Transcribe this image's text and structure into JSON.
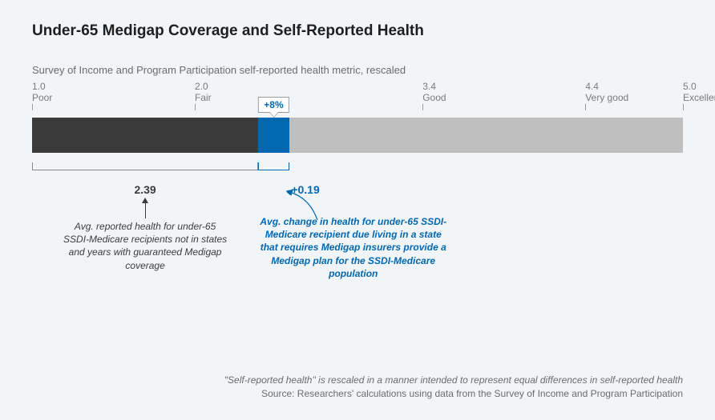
{
  "title": "Under-65 Medigap Coverage and Self-Reported Health",
  "subtitle": "Survey of Income and Program Participation self-reported health metric, rescaled",
  "chart": {
    "type": "bar",
    "scale": {
      "min": 1.0,
      "max": 5.0,
      "ticks": [
        {
          "value": 1.0,
          "num": "1.0",
          "label": "Poor"
        },
        {
          "value": 2.0,
          "num": "2.0",
          "label": "Fair"
        },
        {
          "value": 3.4,
          "num": "3.4",
          "label": "Good"
        },
        {
          "value": 4.4,
          "num": "4.4",
          "label": "Very good"
        },
        {
          "value": 5.0,
          "num": "5.0",
          "label": "Excellent"
        }
      ]
    },
    "background_color": "#bfbfbf",
    "segments": {
      "dark": {
        "start": 1.0,
        "end": 2.39,
        "color": "#3b3b3b"
      },
      "blue": {
        "start": 2.39,
        "end": 2.58,
        "color": "#0067b1"
      }
    },
    "callout": "+8%",
    "values": {
      "base": "2.39",
      "delta": "+0.19"
    },
    "annotations": {
      "grey": "Avg. reported health for under-65 SSDI-Medicare recipients not in states and years with guaranteed Medigap coverage",
      "blue": "Avg. change in health for under-65 SSDI-Medicare recipient due living in a state that requires Medigap insurers provide a Medigap plan for the SSDI-Medicare population"
    }
  },
  "footnote": {
    "line1": "\"Self-reported health\" is rescaled in a manner intended to represent equal differences in self-reported health",
    "line2": "Source: Researchers' calculations using data from the Survey of Income and Program Participation"
  },
  "colors": {
    "page_bg": "#f2f5f8",
    "text_dark": "#1e1e1e",
    "text_grey": "#6b6b6b",
    "accent_blue": "#0067b1",
    "bar_dark": "#3b3b3b",
    "bar_light": "#bfbfbf"
  }
}
